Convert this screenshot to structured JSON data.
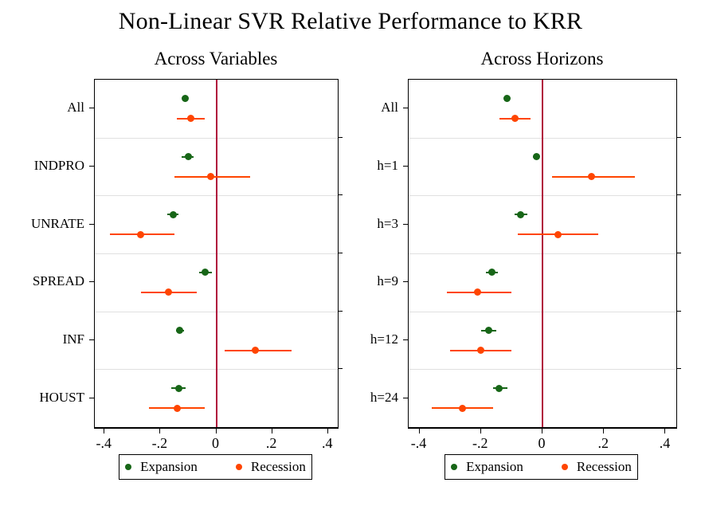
{
  "title": "Non-Linear SVR Relative Performance to KRR",
  "colors": {
    "expansion": "#176617",
    "recession": "#ff4500",
    "zero_line": "#b00c3c",
    "grid": "#e0e0e0",
    "axis": "#000000"
  },
  "legend": {
    "items": [
      {
        "label": "Expansion",
        "color_key": "expansion"
      },
      {
        "label": "Recession",
        "color_key": "recession"
      }
    ]
  },
  "chart_data": [
    {
      "type": "scatter",
      "subtype": "dot-and-whisker",
      "panel_title": "Across Variables",
      "categories": [
        "All",
        "INDPRO",
        "UNRATE",
        "SPREAD",
        "INF",
        "HOUST"
      ],
      "series": [
        {
          "name": "Expansion",
          "color_key": "expansion",
          "values": [
            -0.11,
            -0.1,
            -0.155,
            -0.04,
            -0.13,
            -0.135
          ],
          "ci_low": [
            -0.12,
            -0.125,
            -0.175,
            -0.06,
            -0.145,
            -0.16
          ],
          "ci_high": [
            -0.1,
            -0.08,
            -0.135,
            -0.015,
            -0.115,
            -0.11
          ]
        },
        {
          "name": "Recession",
          "color_key": "recession",
          "values": [
            -0.09,
            -0.02,
            -0.27,
            -0.17,
            0.14,
            -0.14
          ],
          "ci_low": [
            -0.14,
            -0.15,
            -0.38,
            -0.27,
            0.03,
            -0.24
          ],
          "ci_high": [
            -0.04,
            0.12,
            -0.15,
            -0.07,
            0.27,
            -0.04
          ]
        }
      ],
      "xlim": [
        -0.435,
        0.435
      ],
      "x_ticks": [
        -0.4,
        -0.2,
        0,
        0.2,
        0.4
      ],
      "x_tick_labels": [
        "-.4",
        "-.2",
        "0",
        ".2",
        ".4"
      ],
      "zero_line": 0,
      "grid": "horizontal band separators",
      "legend_position": "below"
    },
    {
      "type": "scatter",
      "subtype": "dot-and-whisker",
      "panel_title": "Across Horizons",
      "categories": [
        "All",
        "h=1",
        "h=3",
        "h=9",
        "h=12",
        "h=24"
      ],
      "series": [
        {
          "name": "Expansion",
          "color_key": "expansion",
          "values": [
            -0.115,
            -0.02,
            -0.07,
            -0.165,
            -0.175,
            -0.14
          ],
          "ci_low": [
            -0.125,
            -0.03,
            -0.09,
            -0.185,
            -0.2,
            -0.16
          ],
          "ci_high": [
            -0.105,
            -0.01,
            -0.05,
            -0.145,
            -0.15,
            -0.115
          ]
        },
        {
          "name": "Recession",
          "color_key": "recession",
          "values": [
            -0.09,
            0.16,
            0.05,
            -0.21,
            -0.2,
            -0.26
          ],
          "ci_low": [
            -0.14,
            0.03,
            -0.08,
            -0.31,
            -0.3,
            -0.36
          ],
          "ci_high": [
            -0.04,
            0.3,
            0.18,
            -0.1,
            -0.1,
            -0.16
          ]
        }
      ],
      "xlim": [
        -0.435,
        0.435
      ],
      "x_ticks": [
        -0.4,
        -0.2,
        0,
        0.2,
        0.4
      ],
      "x_tick_labels": [
        "-.4",
        "-.2",
        "0",
        ".2",
        ".4"
      ],
      "zero_line": 0,
      "grid": "horizontal band separators",
      "legend_position": "below"
    }
  ]
}
